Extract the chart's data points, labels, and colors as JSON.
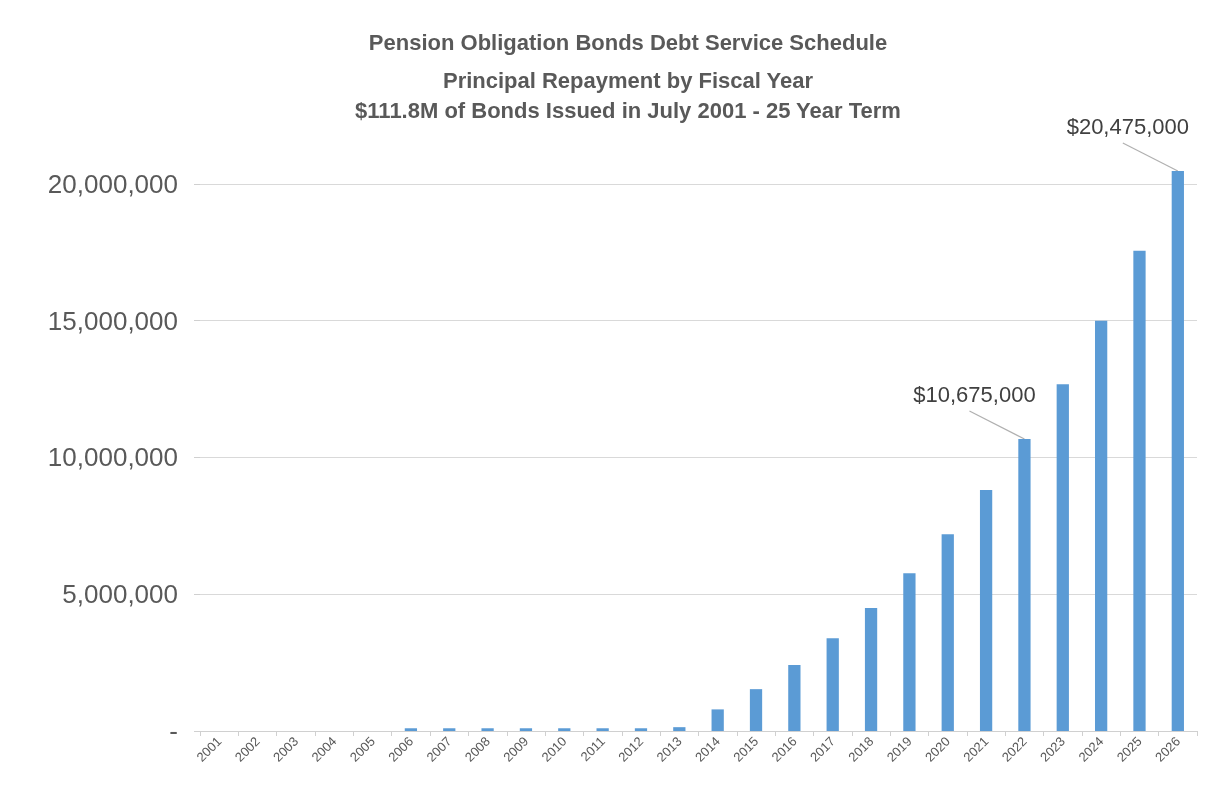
{
  "chart_data": {
    "type": "bar",
    "title": "Pension Obligation Bonds Debt Service Schedule",
    "subtitle": "Principal Repayment by Fiscal Year\n$111.8M of Bonds Issued in July 2001 - 25 Year Term",
    "categories": [
      "2001",
      "2002",
      "2003",
      "2004",
      "2005",
      "2006",
      "2007",
      "2008",
      "2009",
      "2010",
      "2011",
      "2012",
      "2013",
      "2014",
      "2015",
      "2016",
      "2017",
      "2018",
      "2019",
      "2020",
      "2021",
      "2022",
      "2023",
      "2024",
      "2025",
      "2026"
    ],
    "values": [
      0,
      0,
      0,
      0,
      0,
      100000,
      100000,
      100000,
      100000,
      100000,
      100000,
      100000,
      140000,
      790000,
      1530000,
      2410000,
      3390000,
      4500000,
      5770000,
      7190000,
      8810000,
      10675000,
      12680000,
      15000000,
      17560000,
      20475000
    ],
    "color": "#5b9bd5",
    "ylim": [
      0,
      20475000
    ],
    "yticks": [
      {
        "value": 0,
        "label": "-"
      },
      {
        "value": 5000000,
        "label": "5,000,000"
      },
      {
        "value": 10000000,
        "label": "10,000,000"
      },
      {
        "value": 15000000,
        "label": "15,000,000"
      },
      {
        "value": 20000000,
        "label": "20,000,000"
      }
    ],
    "grid": "y",
    "annotations": [
      {
        "text": "$10,675,000",
        "x": "2022",
        "y": 10675000
      },
      {
        "text": "$20,475,000",
        "x": "2026",
        "y": 20475000
      }
    ]
  }
}
